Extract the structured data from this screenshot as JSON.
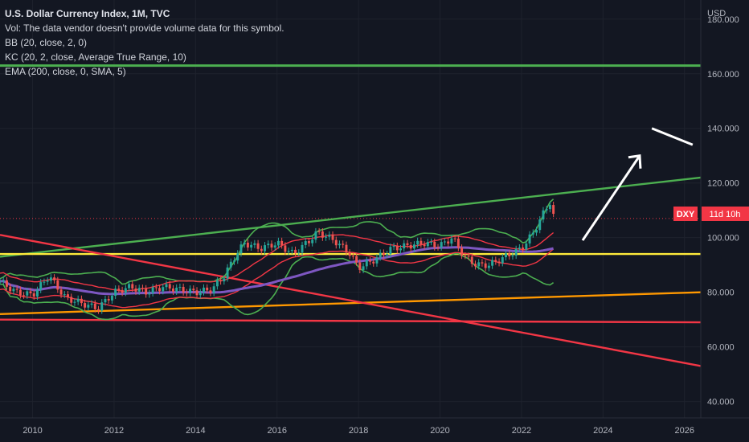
{
  "legend": {
    "title": "U.S. Dollar Currency Index, 1M, TVC",
    "vol": "Vol: The data vendor doesn't provide volume data for this symbol.",
    "bb": "BB (20, close, 2, 0)",
    "kc": "KC (20, 2, close, Average True Range, 10)",
    "ema": "EMA (200, close, 0, SMA, 5)"
  },
  "axis": {
    "currency": "USD",
    "y_ticks": [
      "180.000",
      "160.000",
      "140.000",
      "120.000",
      "100.000",
      "80.000",
      "60.000",
      "40.000"
    ],
    "x_ticks": [
      "2010",
      "2012",
      "2014",
      "2016",
      "2018",
      "2020",
      "2022",
      "2024",
      "2026"
    ]
  },
  "price_label": {
    "symbol": "DXY",
    "countdown": "11d 10h"
  },
  "colors": {
    "background": "#131722",
    "green_trend": "#4caf50",
    "yellow": "#ffeb3b",
    "orange": "#ff9800",
    "red": "#f23645",
    "purple": "#7e57c2",
    "candle_up": "#26a69a",
    "candle_down": "#ef5350",
    "bb_band": "#4caf50",
    "kc_band": "#f23645"
  },
  "chart_data": {
    "type": "line",
    "title": "U.S. Dollar Currency Index, 1M, TVC",
    "symbol": "DXY",
    "ylim": [
      34,
      187
    ],
    "xlim": [
      2009.2,
      2026.4
    ],
    "y_scale": "linear",
    "grid": true,
    "last_price": 107,
    "close_series": {
      "name": "DXY",
      "x": [
        2009.2,
        2009.6,
        2010.0,
        2010.4,
        2010.8,
        2011.2,
        2011.6,
        2012.0,
        2012.4,
        2012.8,
        2013.2,
        2013.6,
        2014.0,
        2014.4,
        2014.7,
        2015.0,
        2015.2,
        2015.6,
        2016.0,
        2016.4,
        2016.8,
        2017.0,
        2017.4,
        2017.8,
        2018.0,
        2018.4,
        2018.8,
        2019.2,
        2019.6,
        2020.0,
        2020.3,
        2020.6,
        2020.9,
        2021.2,
        2021.6,
        2022.0,
        2022.3,
        2022.5,
        2022.7,
        2022.8
      ],
      "y": [
        84,
        80,
        79,
        86,
        78,
        76,
        74,
        80,
        82,
        80,
        82,
        81,
        80,
        81,
        86,
        94,
        98,
        96,
        98,
        94,
        99,
        102,
        99,
        94,
        89,
        92,
        96,
        97,
        98,
        97,
        100,
        93,
        90,
        90,
        93,
        96,
        102,
        108,
        113,
        107
      ]
    },
    "indicator_lines": [
      {
        "name": "BB (20, close, 2, 0)",
        "color": "#4caf50"
      },
      {
        "name": "KC (20, 2, close, Average True Range, 10)",
        "color": "#f23645"
      },
      {
        "name": "EMA (200, close, 0, SMA, 5)",
        "color": "#7e57c2"
      }
    ],
    "drawings": [
      {
        "kind": "horizontal",
        "y": 163,
        "color": "#4caf50"
      },
      {
        "kind": "trendline",
        "from": [
          2009.2,
          93
        ],
        "to": [
          2026.4,
          122
        ],
        "color": "#4caf50"
      },
      {
        "kind": "horizontal",
        "y": 94,
        "color": "#ffeb3b"
      },
      {
        "kind": "trendline",
        "from": [
          2009.2,
          72
        ],
        "to": [
          2026.4,
          80
        ],
        "color": "#ff9800"
      },
      {
        "kind": "trendline",
        "from": [
          2009.2,
          70
        ],
        "to": [
          2026.4,
          69
        ],
        "color": "#f23645"
      },
      {
        "kind": "trendline",
        "from": [
          2009.2,
          101
        ],
        "to": [
          2026.4,
          53
        ],
        "color": "#f23645"
      }
    ],
    "annotations": [
      {
        "kind": "arrow",
        "direction": "up-right",
        "color": "#ffffff"
      },
      {
        "kind": "arrow",
        "direction": "down-right",
        "color": "#ffffff"
      }
    ]
  }
}
